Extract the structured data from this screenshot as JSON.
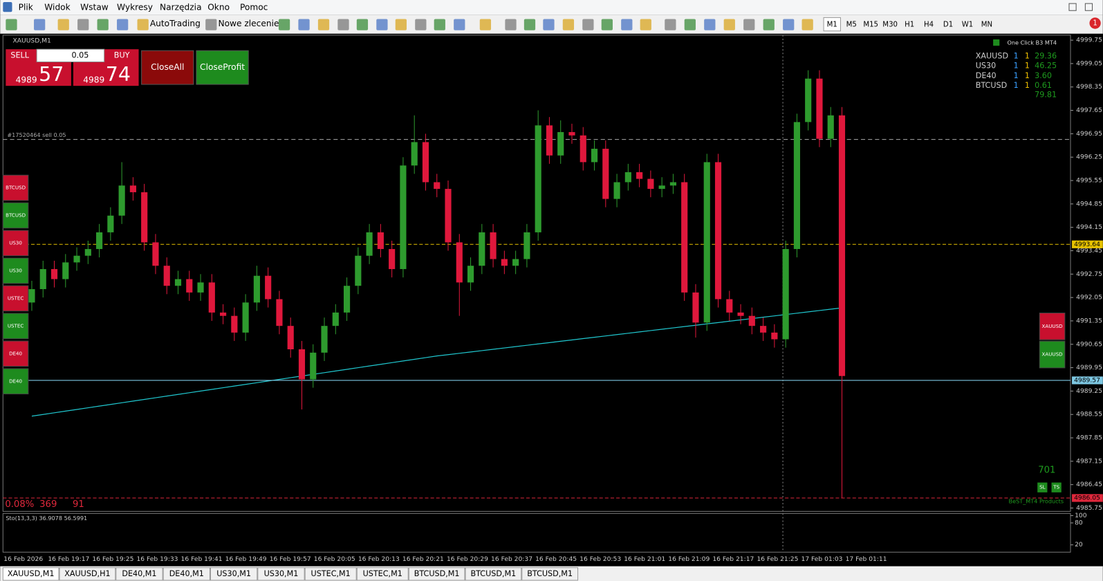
{
  "menu": [
    "Plik",
    "Widok",
    "Wstaw",
    "Wykresy",
    "Narzędzia",
    "Okno",
    "Pomoc"
  ],
  "toolbar": {
    "autotrading": "AutoTrading",
    "new_order": "Nowe zlecenie",
    "timeframes": [
      "M1",
      "M5",
      "M15",
      "M30",
      "H1",
      "H4",
      "D1",
      "W1",
      "MN"
    ],
    "notifications": "1"
  },
  "trade_panel": {
    "sell": "SELL",
    "buy": "BUY",
    "lot": "0.05",
    "sell_big": "4989",
    "sell_pips": "57",
    "buy_big": "4989",
    "buy_pips": "74",
    "close_all": "CloseAll",
    "close_profit": "CloseProfit"
  },
  "chart_data": {
    "type": "candlestick",
    "title": "XAUUSD,M1",
    "up_color": "#2e9b2e",
    "down_color": "#e0183c",
    "time_labels": [
      "16 Feb 2026",
      "16 Feb 19:17",
      "16 Feb 19:25",
      "16 Feb 19:33",
      "16 Feb 19:41",
      "16 Feb 19:49",
      "16 Feb 19:57",
      "16 Feb 20:05",
      "16 Feb 20:13",
      "16 Feb 20:21",
      "16 Feb 20:29",
      "16 Feb 20:37",
      "16 Feb 20:45",
      "16 Feb 20:53",
      "16 Feb 21:01",
      "16 Feb 21:09",
      "16 Feb 21:17",
      "16 Feb 21:25",
      "17 Feb 01:03",
      "17 Feb 01:11"
    ],
    "ylim": [
      4985.65,
      4999.9
    ],
    "yticks": [
      4999.75,
      4999.05,
      4998.35,
      4997.65,
      4996.95,
      4996.25,
      4995.55,
      4994.85,
      4994.15,
      4993.45,
      4992.75,
      4992.05,
      4991.35,
      4990.65,
      4989.95,
      4989.25,
      4988.55,
      4987.85,
      4987.15,
      4986.45,
      4985.75
    ],
    "ohlc": [
      [
        4991.9,
        4992.55,
        4991.65,
        4992.3
      ],
      [
        4992.3,
        4993.15,
        4992.05,
        4992.9
      ],
      [
        4992.9,
        4993.15,
        4992.35,
        4992.6
      ],
      [
        4992.6,
        4993.35,
        4992.35,
        4993.1
      ],
      [
        4993.1,
        4993.55,
        4992.85,
        4993.3
      ],
      [
        4993.3,
        4993.75,
        4993.05,
        4993.5
      ],
      [
        4993.5,
        4994.25,
        4993.25,
        4994.0
      ],
      [
        4994.0,
        4994.75,
        4993.75,
        4994.5
      ],
      [
        4994.5,
        4996.1,
        4994.25,
        4995.4
      ],
      [
        4995.4,
        4995.65,
        4994.95,
        4995.2
      ],
      [
        4995.2,
        4995.45,
        4993.45,
        4993.7
      ],
      [
        4993.7,
        4993.95,
        4992.75,
        4993.0
      ],
      [
        4993.0,
        4993.25,
        4992.15,
        4992.4
      ],
      [
        4992.4,
        4992.85,
        4992.15,
        4992.6
      ],
      [
        4992.6,
        4992.85,
        4991.95,
        4992.2
      ],
      [
        4992.2,
        4992.75,
        4991.95,
        4992.5
      ],
      [
        4992.5,
        4992.75,
        4991.35,
        4991.6
      ],
      [
        4991.6,
        4991.85,
        4991.25,
        4991.5
      ],
      [
        4991.5,
        4991.75,
        4990.75,
        4991.0
      ],
      [
        4991.0,
        4992.15,
        4990.75,
        4991.9
      ],
      [
        4991.9,
        4993.0,
        4991.65,
        4992.7
      ],
      [
        4992.7,
        4992.95,
        4991.75,
        4992.0
      ],
      [
        4992.0,
        4992.25,
        4990.95,
        4991.2
      ],
      [
        4991.2,
        4991.45,
        4990.25,
        4990.5
      ],
      [
        4990.5,
        4990.75,
        4988.7,
        4989.6
      ],
      [
        4989.6,
        4990.65,
        4989.35,
        4990.4
      ],
      [
        4990.4,
        4991.45,
        4990.15,
        4991.2
      ],
      [
        4991.2,
        4991.85,
        4990.95,
        4991.6
      ],
      [
        4991.6,
        4992.65,
        4991.35,
        4992.4
      ],
      [
        4992.4,
        4993.55,
        4992.15,
        4993.3
      ],
      [
        4993.3,
        4994.25,
        4993.05,
        4994.0
      ],
      [
        4994.0,
        4994.25,
        4993.25,
        4993.5
      ],
      [
        4993.5,
        4993.75,
        4992.65,
        4992.9
      ],
      [
        4992.9,
        4996.25,
        4992.65,
        4996.0
      ],
      [
        4996.0,
        4997.5,
        4995.75,
        4996.7
      ],
      [
        4996.7,
        4996.95,
        4995.25,
        4995.5
      ],
      [
        4995.5,
        4995.75,
        4995.05,
        4995.3
      ],
      [
        4995.3,
        4995.55,
        4993.45,
        4993.7
      ],
      [
        4993.7,
        4993.95,
        4991.5,
        4992.5
      ],
      [
        4992.5,
        4993.25,
        4992.25,
        4993.0
      ],
      [
        4993.0,
        4994.25,
        4992.75,
        4994.0
      ],
      [
        4994.0,
        4994.25,
        4992.95,
        4993.2
      ],
      [
        4993.2,
        4993.45,
        4992.75,
        4993.0
      ],
      [
        4993.0,
        4993.45,
        4992.75,
        4993.2
      ],
      [
        4993.2,
        4994.25,
        4992.95,
        4994.0
      ],
      [
        4994.0,
        4997.65,
        4993.75,
        4997.2
      ],
      [
        4997.2,
        4997.45,
        4996.05,
        4996.3
      ],
      [
        4996.3,
        4997.35,
        4996.05,
        4997.0
      ],
      [
        4997.0,
        4997.25,
        4996.65,
        4996.9
      ],
      [
        4996.9,
        4997.15,
        4995.85,
        4996.1
      ],
      [
        4996.1,
        4996.75,
        4995.85,
        4996.5
      ],
      [
        4996.5,
        4996.75,
        4994.75,
        4995.0
      ],
      [
        4995.0,
        4995.75,
        4994.75,
        4995.5
      ],
      [
        4995.5,
        4996.05,
        4995.25,
        4995.8
      ],
      [
        4995.8,
        4996.05,
        4995.35,
        4995.6
      ],
      [
        4995.6,
        4995.85,
        4995.05,
        4995.3
      ],
      [
        4995.3,
        4995.65,
        4995.05,
        4995.4
      ],
      [
        4995.4,
        4995.75,
        4995.15,
        4995.5
      ],
      [
        4995.5,
        4995.75,
        4991.95,
        4992.2
      ],
      [
        4992.2,
        4992.45,
        4990.85,
        4991.3
      ],
      [
        4991.3,
        4996.35,
        4991.05,
        4996.1
      ],
      [
        4996.1,
        4996.35,
        4991.75,
        4992.0
      ],
      [
        4992.0,
        4992.25,
        4991.35,
        4991.6
      ],
      [
        4991.6,
        4991.85,
        4991.25,
        4991.5
      ],
      [
        4991.5,
        4991.75,
        4990.95,
        4991.2
      ],
      [
        4991.2,
        4991.45,
        4990.75,
        4991.0
      ],
      [
        4991.0,
        4991.25,
        4990.55,
        4990.8
      ],
      [
        4990.8,
        4993.75,
        4990.55,
        4993.5
      ],
      [
        4993.5,
        4997.55,
        4993.25,
        4997.3
      ],
      [
        4997.3,
        4998.85,
        4997.05,
        4998.6
      ],
      [
        4998.6,
        4998.85,
        4996.55,
        4996.8
      ],
      [
        4996.8,
        4997.75,
        4996.55,
        4997.5
      ],
      [
        4997.5,
        4997.75,
        4986.05,
        4989.7
      ]
    ],
    "moving_average": {
      "color": "#20c8d0",
      "values": [
        4988.5,
        4988.55,
        4988.6,
        4988.65,
        4988.7,
        4988.75,
        4988.8,
        4988.85,
        4988.9,
        4988.95,
        4989.0,
        4989.05,
        4989.1,
        4989.15,
        4989.2,
        4989.25,
        4989.3,
        4989.35,
        4989.4,
        4989.45,
        4989.5,
        4989.55,
        4989.6,
        4989.65,
        4989.7,
        4989.75,
        4989.8,
        4989.85,
        4989.9,
        4989.95,
        4990.0,
        4990.05,
        4990.1,
        4990.15,
        4990.2,
        4990.25,
        4990.3,
        4990.34,
        4990.38,
        4990.42,
        4990.46,
        4990.5,
        4990.54,
        4990.58,
        4990.62,
        4990.66,
        4990.7,
        4990.74,
        4990.78,
        4990.82,
        4990.86,
        4990.9,
        4990.94,
        4990.98,
        4991.02,
        4991.06,
        4991.1,
        4991.14,
        4991.18,
        4991.22,
        4991.26,
        4991.3,
        4991.34,
        4991.38,
        4991.42,
        4991.46,
        4991.5,
        4991.54,
        4991.58,
        4991.62,
        4991.66,
        4991.7,
        4991.74
      ]
    },
    "price_lines": [
      {
        "value": 4993.64,
        "color": "#e6c200",
        "style": "dash"
      },
      {
        "value": 4989.57,
        "color": "#7ec8e3",
        "style": "solid"
      },
      {
        "value": 4986.05,
        "color": "#e0283c",
        "style": "dash"
      }
    ],
    "order": {
      "label": "#17520464 sell 0.05",
      "price": 4996.78
    },
    "stochastic": {
      "label": "Sto(13,3,3) 36.9078 56.5991",
      "ylim": [
        0,
        100
      ],
      "yticks": [
        20,
        80,
        100
      ]
    }
  },
  "left_buttons": [
    {
      "label": "BTCUSD",
      "color": "#c8102e"
    },
    {
      "label": "BTCUSD",
      "color": "#1e8b1e"
    },
    {
      "label": "US30",
      "color": "#c8102e"
    },
    {
      "label": "US30",
      "color": "#1e8b1e"
    },
    {
      "label": "USTEC",
      "color": "#c8102e"
    },
    {
      "label": "USTEC",
      "color": "#1e8b1e"
    },
    {
      "label": "DE40",
      "color": "#c8102e"
    },
    {
      "label": "DE40",
      "color": "#1e8b1e"
    }
  ],
  "info_panel": {
    "title": "One Click B3 MT4",
    "rows": [
      [
        "XAUUSD",
        "1",
        "1",
        "29.36"
      ],
      [
        "US30",
        "1",
        "1",
        "46.25"
      ],
      [
        "DE40",
        "1",
        "1",
        "3.60"
      ],
      [
        "BTCUSD",
        "1",
        "1",
        "0.61"
      ]
    ],
    "total": "79.81"
  },
  "right_buttons": [
    {
      "label": "XAUUSD",
      "color": "#c8102e"
    },
    {
      "label": "XAUUSD",
      "color": "#1e8b1e"
    }
  ],
  "counter": "701",
  "sl": "SL",
  "ts": "TS",
  "brand": "BeST_MT4 Products",
  "stats": [
    "0.08%",
    "369",
    "91"
  ],
  "tabs": [
    "XAUUSD,M1",
    "XAUUSD,H1",
    "DE40,M1",
    "DE40,M1",
    "US30,M1",
    "US30,M1",
    "USTEC,M1",
    "USTEC,M1",
    "BTCUSD,M1",
    "BTCUSD,M1",
    "BTCUSD,M1"
  ]
}
